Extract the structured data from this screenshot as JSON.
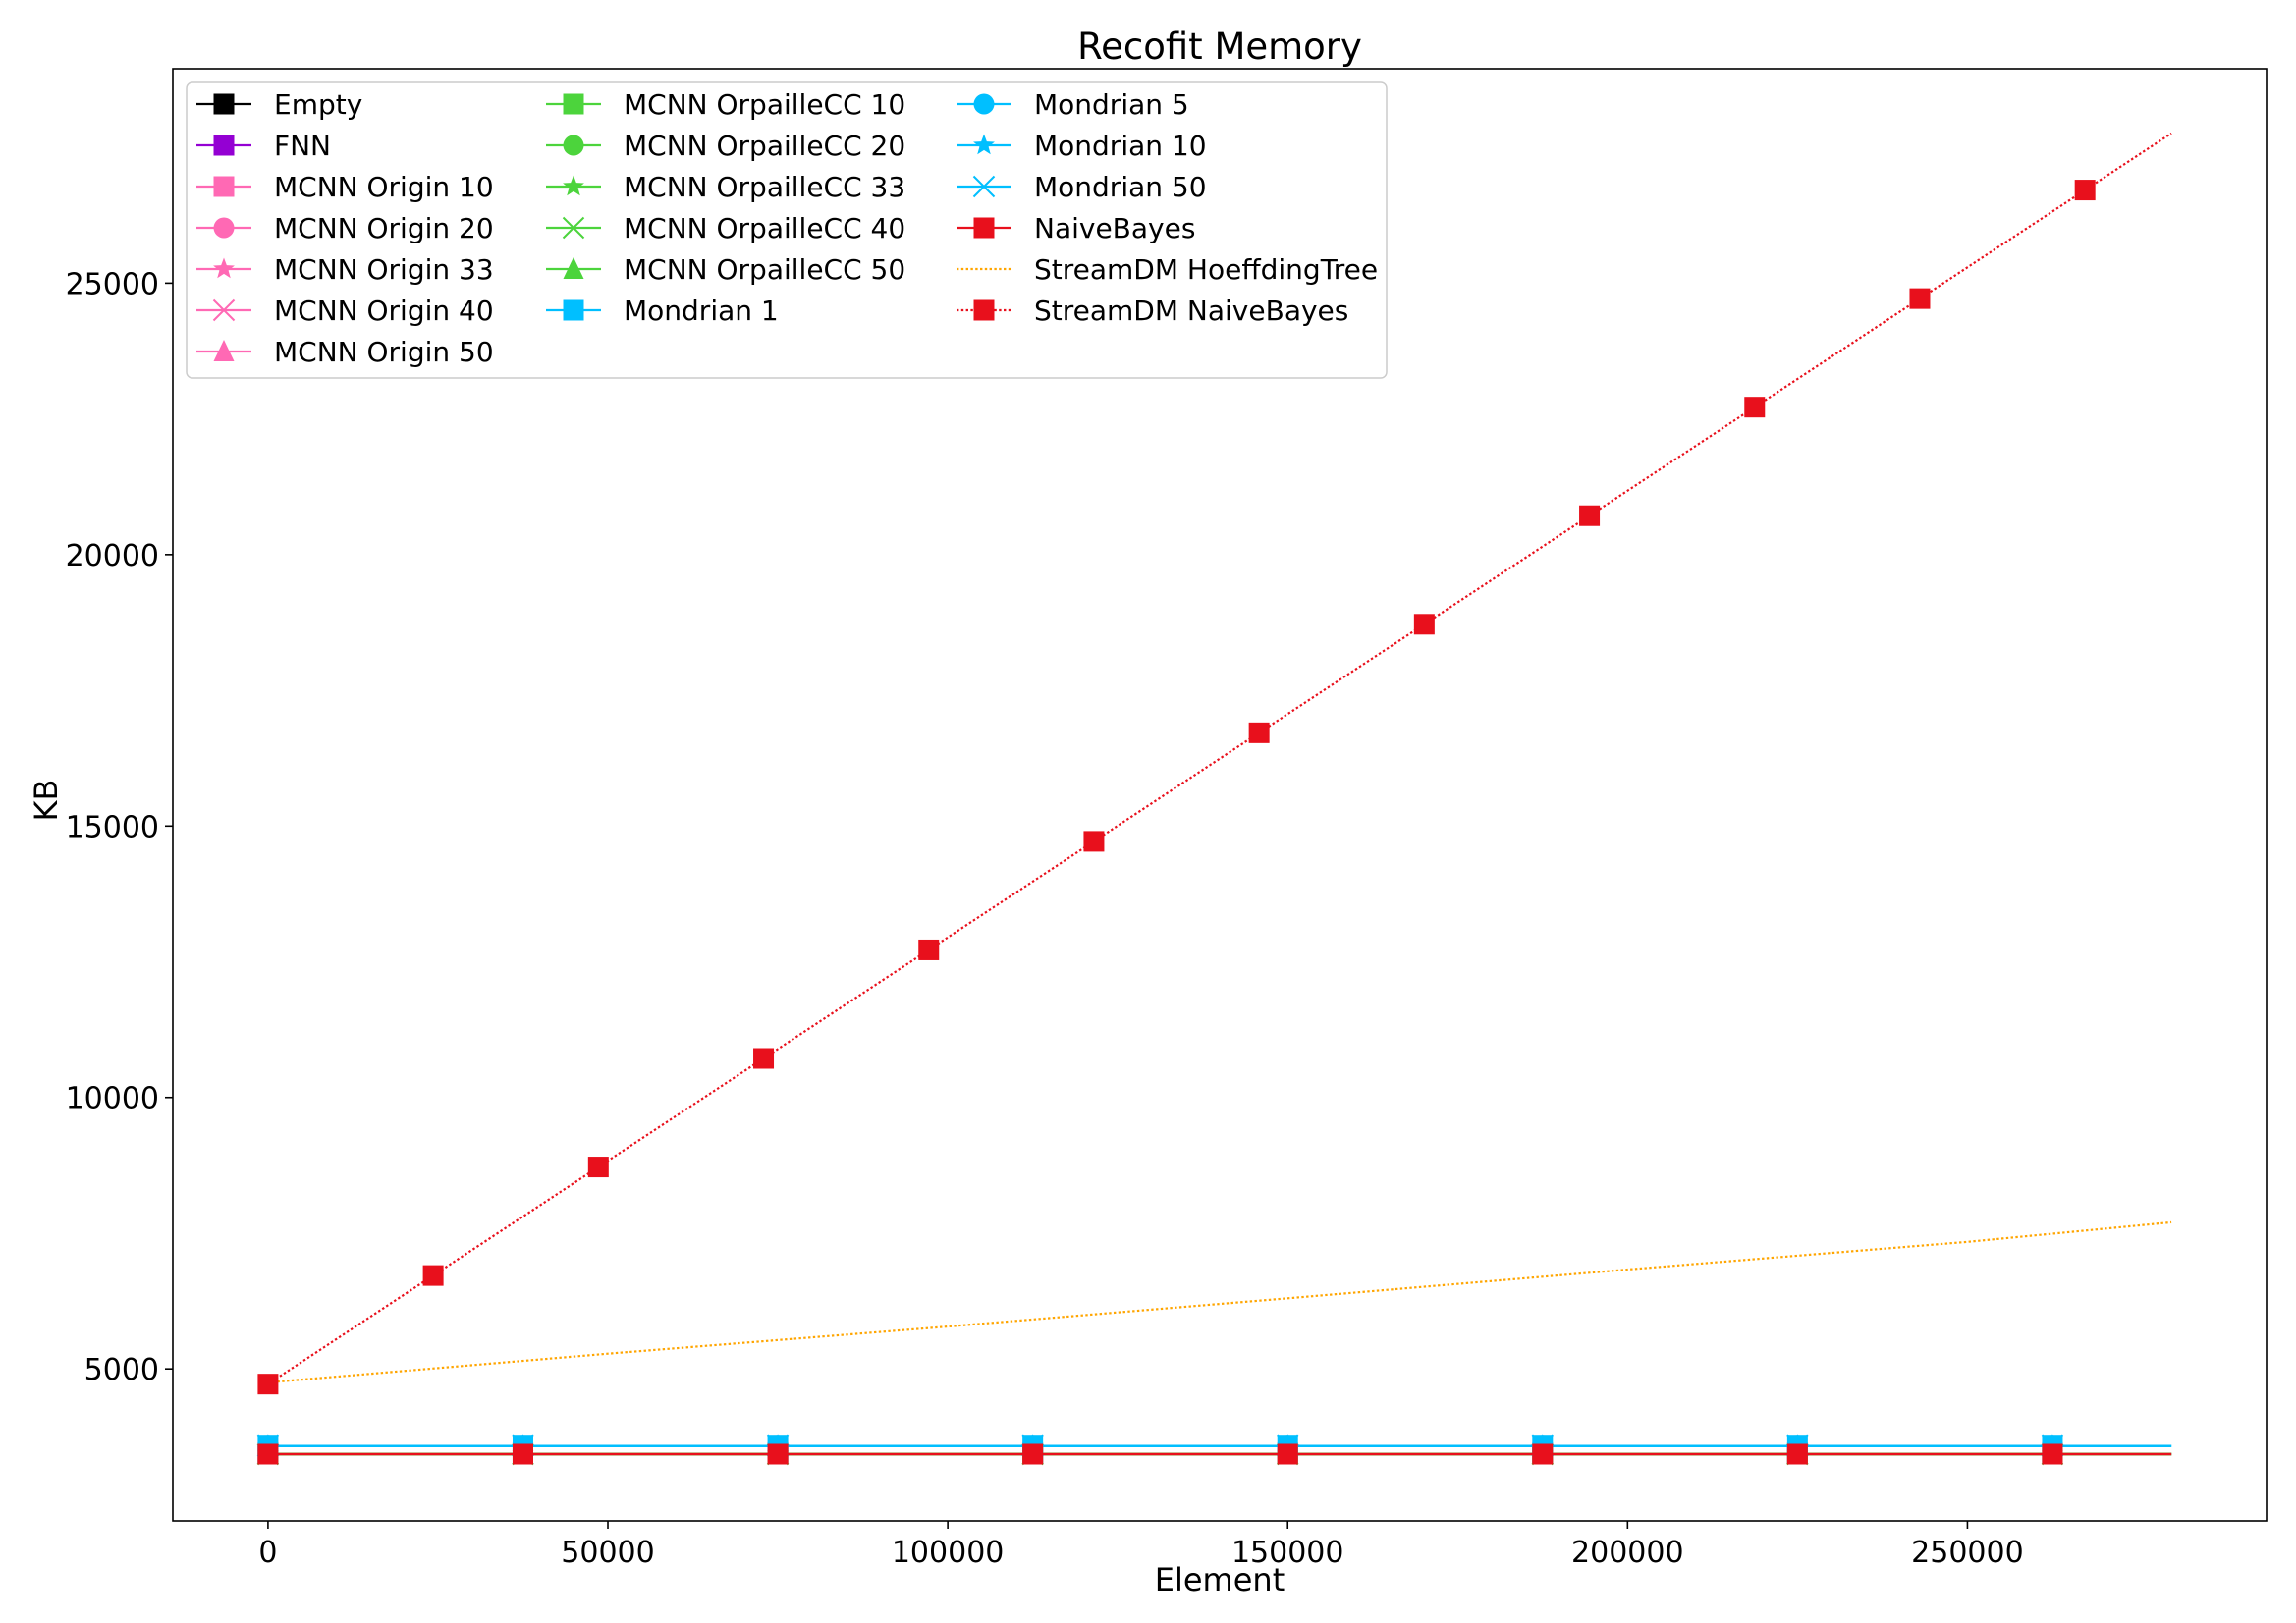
{
  "chart_data": {
    "type": "line",
    "title": "Recofit Memory",
    "xlabel": "Element",
    "ylabel": "KB",
    "xlim": [
      -14000,
      294000
    ],
    "ylim": [
      2200,
      28950
    ],
    "x_ticks": [
      0,
      50000,
      100000,
      150000,
      200000,
      250000
    ],
    "y_ticks": [
      5000,
      10000,
      15000,
      20000,
      25000
    ],
    "grid": false,
    "legend_position": "upper-left",
    "legend_columns": 3,
    "series": [
      {
        "name": "Empty",
        "color": "#000000",
        "linestyle": "solid",
        "marker": "square",
        "x": [
          0,
          280000
        ],
        "y": [
          3430,
          3430
        ],
        "marker_x": [
          0,
          37500,
          75000,
          112500,
          150000,
          187500,
          225000,
          262500
        ]
      },
      {
        "name": "FNN",
        "color": "#9400d3",
        "linestyle": "solid",
        "marker": "square",
        "x": [
          0,
          280000
        ],
        "y": [
          3430,
          3430
        ],
        "marker_x": [
          0,
          37500,
          75000,
          112500,
          150000,
          187500,
          225000,
          262500
        ]
      },
      {
        "name": "MCNN Origin 10",
        "color": "#ff69b4",
        "linestyle": "solid",
        "marker": "square",
        "x": [
          0,
          280000
        ],
        "y": [
          3430,
          3430
        ],
        "marker_x": [
          0,
          37500,
          75000,
          112500,
          150000,
          187500,
          225000,
          262500
        ]
      },
      {
        "name": "MCNN Origin 20",
        "color": "#ff69b4",
        "linestyle": "solid",
        "marker": "circle",
        "x": [
          0,
          280000
        ],
        "y": [
          3430,
          3430
        ],
        "marker_x": [
          0,
          37500,
          75000,
          112500,
          150000,
          187500,
          225000,
          262500
        ]
      },
      {
        "name": "MCNN Origin 33",
        "color": "#ff69b4",
        "linestyle": "solid",
        "marker": "star",
        "x": [
          0,
          280000
        ],
        "y": [
          3430,
          3430
        ],
        "marker_x": [
          0,
          37500,
          75000,
          112500,
          150000,
          187500,
          225000,
          262500
        ]
      },
      {
        "name": "MCNN Origin 40",
        "color": "#ff69b4",
        "linestyle": "solid",
        "marker": "x",
        "x": [
          0,
          280000
        ],
        "y": [
          3430,
          3430
        ],
        "marker_x": [
          0,
          37500,
          75000,
          112500,
          150000,
          187500,
          225000,
          262500
        ]
      },
      {
        "name": "MCNN Origin 50",
        "color": "#ff69b4",
        "linestyle": "solid",
        "marker": "triangle",
        "x": [
          0,
          280000
        ],
        "y": [
          3430,
          3430
        ],
        "marker_x": [
          0,
          37500,
          75000,
          112500,
          150000,
          187500,
          225000,
          262500
        ]
      },
      {
        "name": "MCNN OrpailleCC 10",
        "color": "#4cd43c",
        "linestyle": "solid",
        "marker": "square",
        "x": [
          0,
          280000
        ],
        "y": [
          3430,
          3430
        ],
        "marker_x": [
          0,
          37500,
          75000,
          112500,
          150000,
          187500,
          225000,
          262500
        ]
      },
      {
        "name": "MCNN OrpailleCC 20",
        "color": "#4cd43c",
        "linestyle": "solid",
        "marker": "circle",
        "x": [
          0,
          280000
        ],
        "y": [
          3430,
          3430
        ],
        "marker_x": [
          0,
          37500,
          75000,
          112500,
          150000,
          187500,
          225000,
          262500
        ]
      },
      {
        "name": "MCNN OrpailleCC 33",
        "color": "#4cd43c",
        "linestyle": "solid",
        "marker": "star",
        "x": [
          0,
          280000
        ],
        "y": [
          3430,
          3430
        ],
        "marker_x": [
          0,
          37500,
          75000,
          112500,
          150000,
          187500,
          225000,
          262500
        ]
      },
      {
        "name": "MCNN OrpailleCC 40",
        "color": "#4cd43c",
        "linestyle": "solid",
        "marker": "x",
        "x": [
          0,
          280000
        ],
        "y": [
          3430,
          3430
        ],
        "marker_x": [
          0,
          37500,
          75000,
          112500,
          150000,
          187500,
          225000,
          262500
        ]
      },
      {
        "name": "MCNN OrpailleCC 50",
        "color": "#4cd43c",
        "linestyle": "solid",
        "marker": "triangle",
        "x": [
          0,
          280000
        ],
        "y": [
          3430,
          3430
        ],
        "marker_x": [
          0,
          37500,
          75000,
          112500,
          150000,
          187500,
          225000,
          262500
        ]
      },
      {
        "name": "Mondrian 1",
        "color": "#00bfff",
        "linestyle": "solid",
        "marker": "square",
        "x": [
          0,
          280000
        ],
        "y": [
          3580,
          3580
        ],
        "marker_x": [
          0,
          37500,
          75000,
          112500,
          150000,
          187500,
          225000,
          262500
        ]
      },
      {
        "name": "Mondrian 5",
        "color": "#00bfff",
        "linestyle": "solid",
        "marker": "circle",
        "x": [
          0,
          280000
        ],
        "y": [
          3580,
          3580
        ],
        "marker_x": [
          0,
          37500,
          75000,
          112500,
          150000,
          187500,
          225000,
          262500
        ]
      },
      {
        "name": "Mondrian 10",
        "color": "#00bfff",
        "linestyle": "solid",
        "marker": "star",
        "x": [
          0,
          280000
        ],
        "y": [
          3580,
          3580
        ],
        "marker_x": [
          0,
          37500,
          75000,
          112500,
          150000,
          187500,
          225000,
          262500
        ]
      },
      {
        "name": "Mondrian 50",
        "color": "#00bfff",
        "linestyle": "solid",
        "marker": "x",
        "x": [
          0,
          280000
        ],
        "y": [
          3580,
          3580
        ],
        "marker_x": [
          0,
          37500,
          75000,
          112500,
          150000,
          187500,
          225000,
          262500
        ]
      },
      {
        "name": "NaiveBayes",
        "color": "#e8101c",
        "linestyle": "solid",
        "marker": "square",
        "x": [
          0,
          280000
        ],
        "y": [
          3430,
          3430
        ],
        "marker_x": [
          0,
          37500,
          75000,
          112500,
          150000,
          187500,
          225000,
          262500
        ]
      },
      {
        "name": "StreamDM HoeffdingTree",
        "color": "#ffa500",
        "linestyle": "dotted",
        "marker": "none",
        "x": [
          0,
          50000,
          100000,
          150000,
          200000,
          250000,
          280000
        ],
        "y": [
          4750,
          5280,
          5780,
          6300,
          6830,
          7340,
          7700
        ],
        "marker_x": []
      },
      {
        "name": "StreamDM NaiveBayes",
        "color": "#e8101c",
        "linestyle": "dotted",
        "marker": "square",
        "x": [
          0,
          280000
        ],
        "y": [
          4720,
          27760
        ],
        "marker_x": [
          0,
          24300,
          48600,
          72900,
          97200,
          121500,
          145800,
          170100,
          194400,
          218700,
          243000,
          267300
        ]
      }
    ]
  }
}
